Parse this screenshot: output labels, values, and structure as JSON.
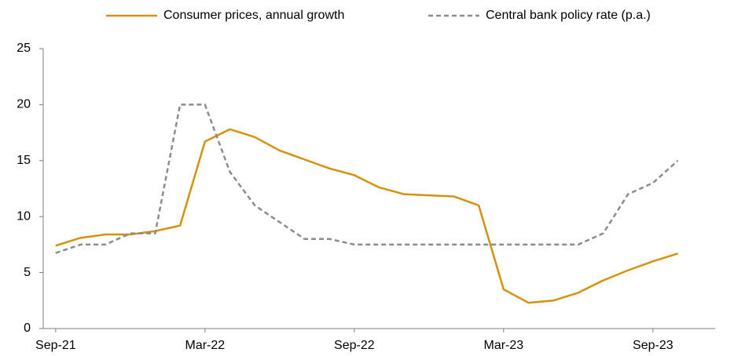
{
  "chart_data": {
    "type": "line",
    "categories": [
      "Sep-21",
      null,
      null,
      null,
      null,
      null,
      "Mar-22",
      null,
      null,
      null,
      null,
      null,
      "Sep-22",
      null,
      null,
      null,
      null,
      null,
      "Mar-23",
      null,
      null,
      null,
      null,
      null,
      "Sep-23",
      null
    ],
    "series": [
      {
        "name": "Consumer prices, annual growth",
        "color": "#d4920f",
        "dash": false,
        "values": [
          7.4,
          8.1,
          8.4,
          8.4,
          8.7,
          9.2,
          16.7,
          17.8,
          17.1,
          15.9,
          15.1,
          14.3,
          13.7,
          12.6,
          12.0,
          11.9,
          11.8,
          11.0,
          3.5,
          2.3,
          2.5,
          3.2,
          4.3,
          5.2,
          6.0,
          6.7
        ]
      },
      {
        "name": "Central bank policy rate (p.a.)",
        "color": "#8c8c8c",
        "dash": true,
        "values": [
          6.75,
          7.5,
          7.5,
          8.5,
          8.5,
          20,
          20,
          14,
          11,
          9.5,
          8,
          8,
          7.5,
          7.5,
          7.5,
          7.5,
          7.5,
          7.5,
          7.5,
          7.5,
          7.5,
          7.5,
          8.5,
          12,
          13,
          15
        ]
      }
    ],
    "ylim": [
      0,
      25
    ],
    "yticks": [
      0,
      5,
      10,
      15,
      20,
      25
    ],
    "grid": false,
    "legend": "top"
  }
}
